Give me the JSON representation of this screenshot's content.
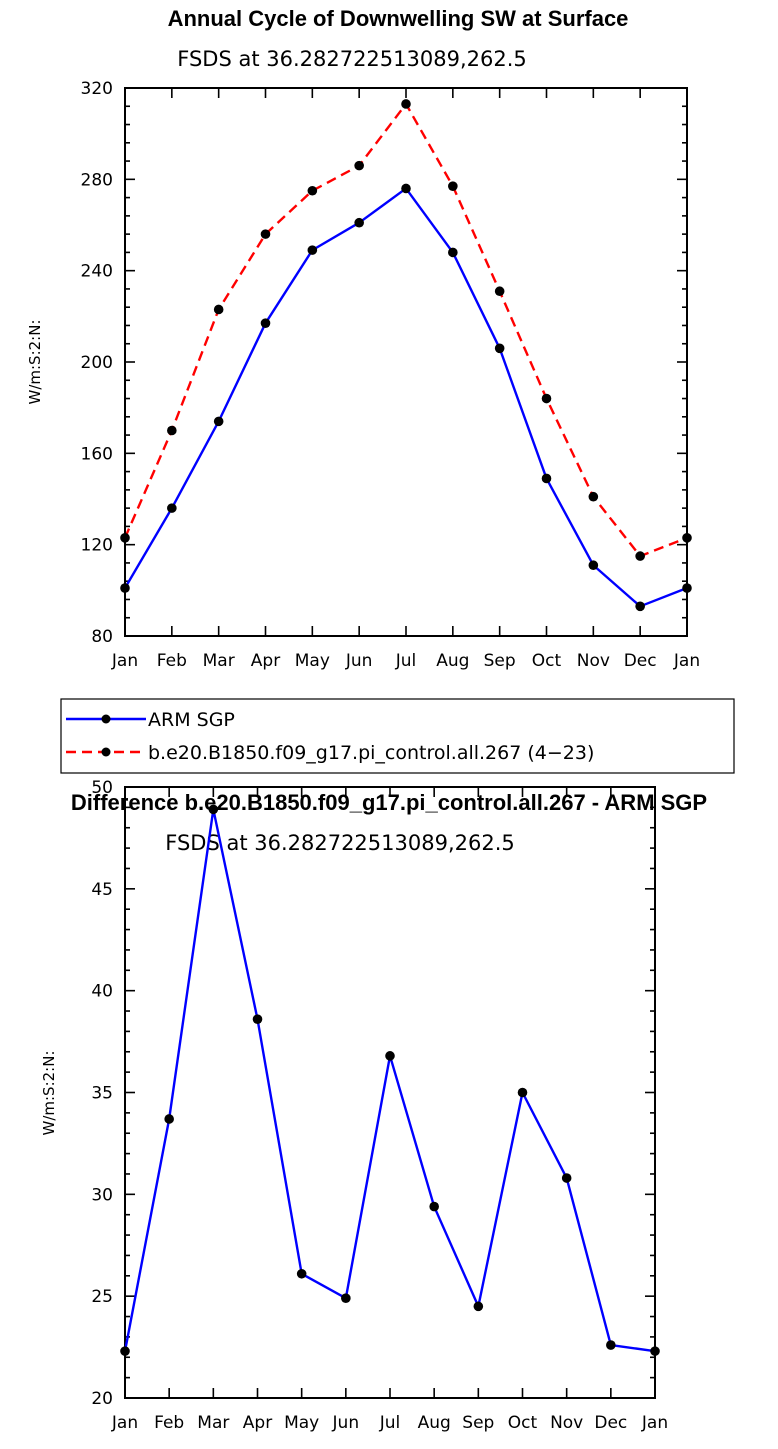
{
  "chart_data": [
    {
      "type": "line",
      "title": "Annual Cycle of Downwelling SW at Surface",
      "subtitle": "FSDS at 36.282722513089,262.5",
      "ylabel": "W/m:S:2:N:",
      "xlabel": "",
      "categories": [
        "Jan",
        "Feb",
        "Mar",
        "Apr",
        "May",
        "Jun",
        "Jul",
        "Aug",
        "Sep",
        "Oct",
        "Nov",
        "Dec",
        "Jan"
      ],
      "ylim": [
        80,
        320
      ],
      "yticks": [
        80,
        120,
        160,
        200,
        240,
        280,
        320
      ],
      "series": [
        {
          "name": "ARM SGP",
          "color": "#0000ff",
          "dash": "solid",
          "values": [
            101,
            136,
            174,
            217,
            249,
            261,
            276,
            248,
            206,
            149,
            111,
            93,
            101
          ]
        },
        {
          "name": "b.e20.B1850.f09_g17.pi_control.all.267 (4−23)",
          "color": "#ff0000",
          "dash": "dashed",
          "values": [
            123,
            170,
            223,
            256,
            275,
            286,
            313,
            277,
            231,
            184,
            141,
            115,
            123
          ]
        }
      ],
      "legend": "below"
    },
    {
      "type": "line",
      "title": "Difference b.e20.B1850.f09_g17.pi_control.all.267 - ARM SGP",
      "subtitle": "FSDS at 36.282722513089,262.5",
      "ylabel": "W/m:S:2:N:",
      "xlabel": "",
      "categories": [
        "Jan",
        "Feb",
        "Mar",
        "Apr",
        "May",
        "Jun",
        "Jul",
        "Aug",
        "Sep",
        "Oct",
        "Nov",
        "Dec",
        "Jan"
      ],
      "ylim": [
        20,
        50
      ],
      "yticks": [
        20,
        25,
        30,
        35,
        40,
        45,
        50
      ],
      "series": [
        {
          "color": "#0000ff",
          "dash": "solid",
          "values": [
            22.3,
            33.7,
            48.9,
            38.6,
            26.1,
            24.9,
            36.8,
            29.4,
            24.5,
            35.0,
            30.8,
            22.6,
            22.3
          ]
        }
      ]
    }
  ]
}
